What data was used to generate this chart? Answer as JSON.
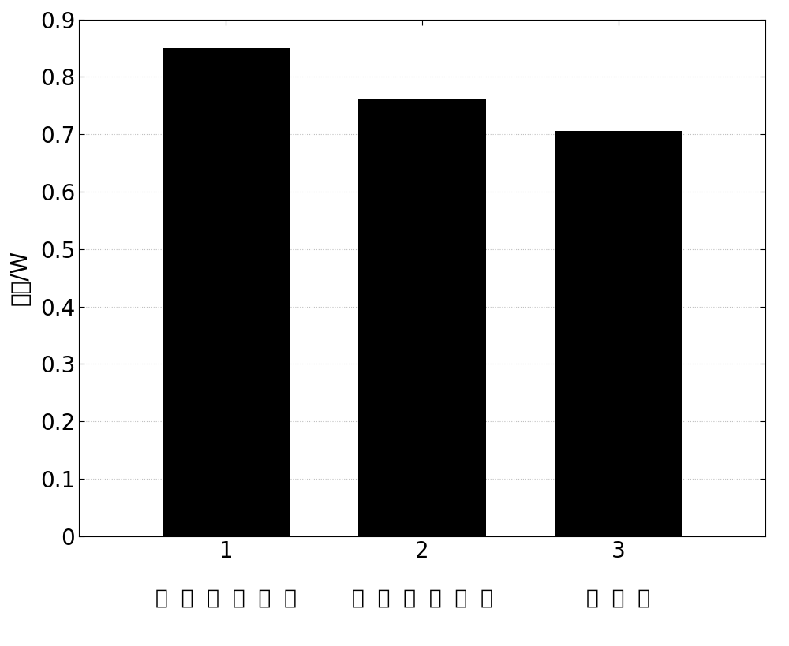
{
  "categories": [
    "1",
    "2",
    "3"
  ],
  "values": [
    0.85,
    0.76,
    0.706
  ],
  "bar_color": "#000000",
  "bar_width": 0.65,
  "xlabels_below": [
    "最小跳数路由",
    "最小能量路由",
    "新路由"
  ],
  "ylabel": "功率/W",
  "ylim": [
    0,
    0.9
  ],
  "yticks": [
    0,
    0.1,
    0.2,
    0.3,
    0.4,
    0.5,
    0.6,
    0.7,
    0.8,
    0.9
  ],
  "background_color": "#ffffff",
  "grid_color": "#b0b0b0",
  "grid_linestyle": ":",
  "tick_fontsize": 20,
  "ylabel_fontsize": 20,
  "xlabel_below_fontsize": 19,
  "xlim": [
    0.25,
    3.75
  ]
}
